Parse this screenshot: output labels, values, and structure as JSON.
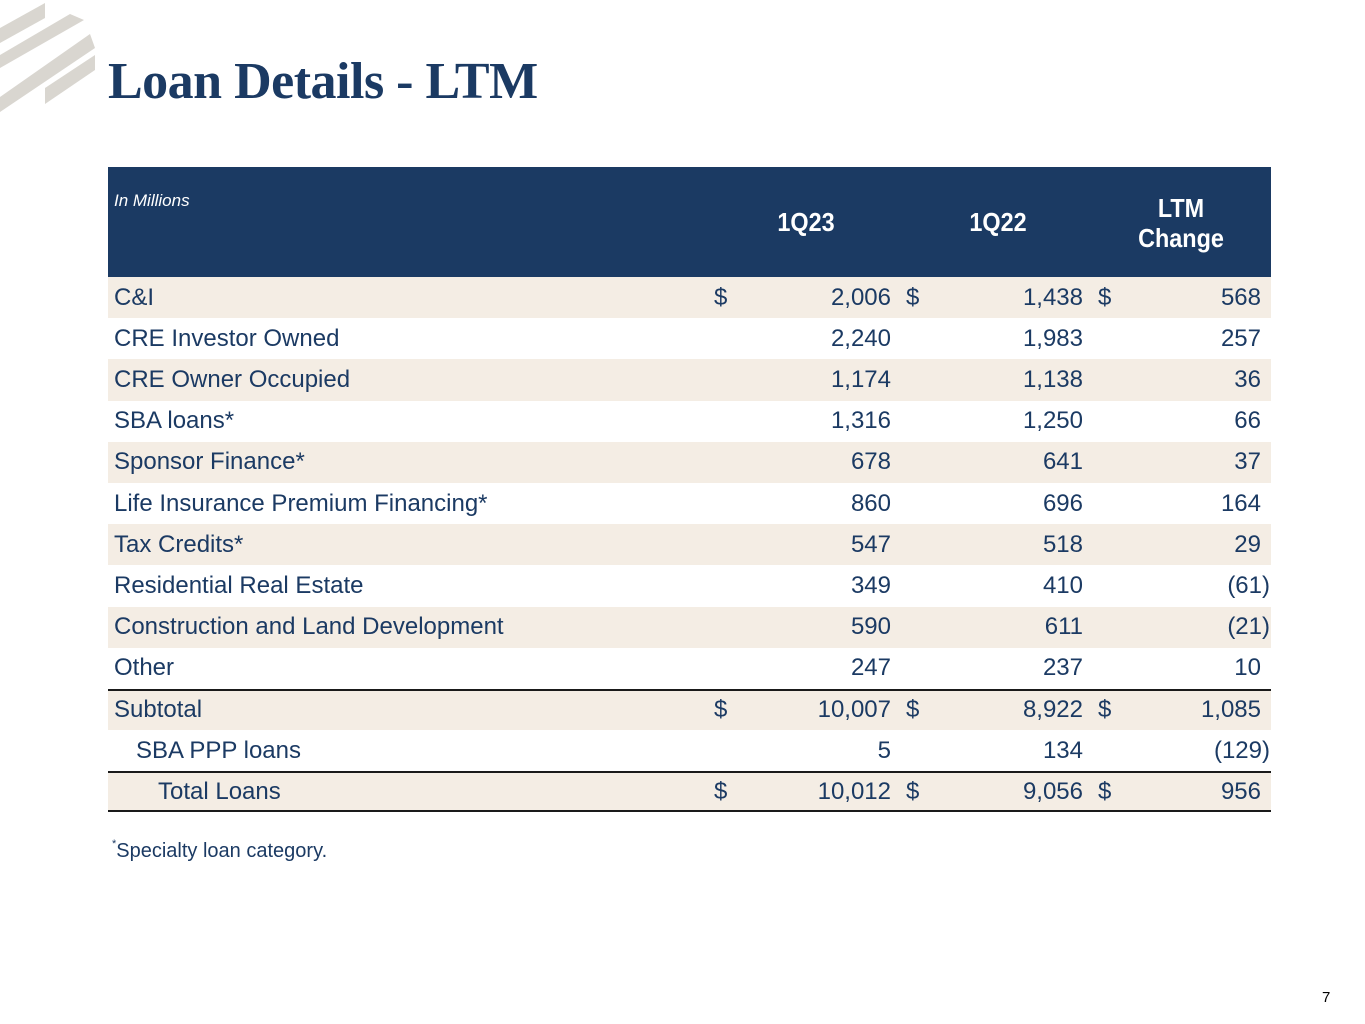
{
  "title": "Loan Details - LTM",
  "table": {
    "units_label": "In Millions",
    "columns": [
      "1Q23",
      "1Q22",
      "LTM",
      "Change"
    ],
    "rows": [
      {
        "label": "C&I",
        "cur": [
          "$",
          "$",
          "$"
        ],
        "values": [
          "2,006",
          "1,438",
          "568"
        ]
      },
      {
        "label": "CRE Investor Owned",
        "values": [
          "2,240",
          "1,983",
          "257"
        ]
      },
      {
        "label": "CRE Owner Occupied",
        "values": [
          "1,174",
          "1,138",
          "36"
        ]
      },
      {
        "label": "SBA loans*",
        "values": [
          "1,316",
          "1,250",
          "66"
        ]
      },
      {
        "label": "Sponsor Finance*",
        "values": [
          "678",
          "641",
          "37"
        ]
      },
      {
        "label": "Life Insurance Premium Financing*",
        "values": [
          "860",
          "696",
          "164"
        ]
      },
      {
        "label": "Tax Credits*",
        "values": [
          "547",
          "518",
          "29"
        ]
      },
      {
        "label": "Residential Real Estate",
        "values": [
          "349",
          "410",
          "(61)"
        ]
      },
      {
        "label": "Construction and Land Development",
        "values": [
          "590",
          "611",
          "(21)"
        ]
      },
      {
        "label": "Other",
        "values": [
          "247",
          "237",
          "10"
        ]
      },
      {
        "label": "Subtotal",
        "cur": [
          "$",
          "$",
          "$"
        ],
        "values": [
          "10,007",
          "8,922",
          "1,085"
        ]
      },
      {
        "label": "SBA PPP loans",
        "values": [
          "5",
          "134",
          "(129)"
        ]
      },
      {
        "label": "Total Loans",
        "cur": [
          "$",
          "$",
          "$"
        ],
        "values": [
          "10,012",
          "9,056",
          "956"
        ]
      }
    ]
  },
  "footnote": {
    "marker": "*",
    "text": "Specialty loan category."
  },
  "page_number": "7",
  "colors": {
    "navy": "#1b3a63",
    "row_shade": "#f4ede4",
    "logo_gray": "#d9d6d0"
  }
}
